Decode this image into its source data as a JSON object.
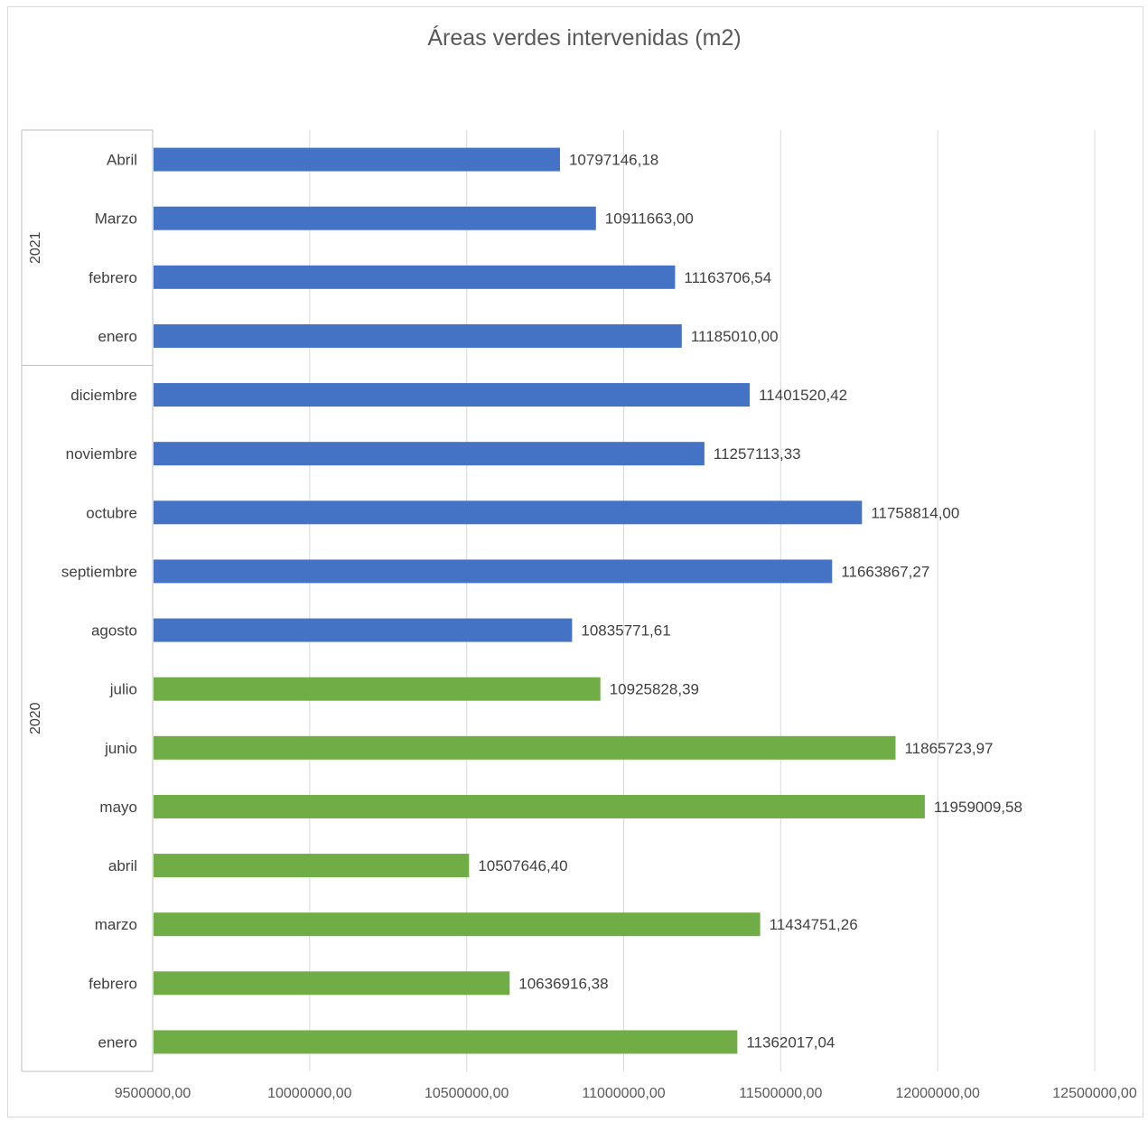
{
  "chart_data": {
    "type": "bar",
    "orientation": "horizontal",
    "title": "Áreas verdes intervenidas (m2)",
    "xlabel": "",
    "ylabel": "",
    "xlim": [
      9500000,
      12500000
    ],
    "x_ticks": [
      "9500000,00",
      "10000000,00",
      "10500000,00",
      "11000000,00",
      "11500000,00",
      "12000000,00",
      "12500000,00"
    ],
    "x_tick_values": [
      9500000,
      10000000,
      10500000,
      11000000,
      11500000,
      12000000,
      12500000
    ],
    "grid": true,
    "legend": "none",
    "colors": {
      "blue": "#4472c4",
      "green": "#70ad47"
    },
    "groups": [
      {
        "year": "2021",
        "count": 4
      },
      {
        "year": "2020",
        "count": 12
      }
    ],
    "categories": [
      {
        "year": "2021",
        "month": "Abril",
        "value": 10797146.18,
        "label": "10797146,18",
        "color": "#4472c4"
      },
      {
        "year": "2021",
        "month": "Marzo",
        "value": 10911663.0,
        "label": "10911663,00",
        "color": "#4472c4"
      },
      {
        "year": "2021",
        "month": "febrero",
        "value": 11163706.54,
        "label": "11163706,54",
        "color": "#4472c4"
      },
      {
        "year": "2021",
        "month": "enero",
        "value": 11185010.0,
        "label": "11185010,00",
        "color": "#4472c4"
      },
      {
        "year": "2020",
        "month": "diciembre",
        "value": 11401520.42,
        "label": "11401520,42",
        "color": "#4472c4"
      },
      {
        "year": "2020",
        "month": "noviembre",
        "value": 11257113.33,
        "label": "11257113,33",
        "color": "#4472c4"
      },
      {
        "year": "2020",
        "month": "octubre",
        "value": 11758814.0,
        "label": "11758814,00",
        "color": "#4472c4"
      },
      {
        "year": "2020",
        "month": "septiembre",
        "value": 11663867.27,
        "label": "11663867,27",
        "color": "#4472c4"
      },
      {
        "year": "2020",
        "month": "agosto",
        "value": 10835771.61,
        "label": "10835771,61",
        "color": "#4472c4"
      },
      {
        "year": "2020",
        "month": "julio",
        "value": 10925828.39,
        "label": "10925828,39",
        "color": "#70ad47"
      },
      {
        "year": "2020",
        "month": "junio",
        "value": 11865723.97,
        "label": "11865723,97",
        "color": "#70ad47"
      },
      {
        "year": "2020",
        "month": "mayo",
        "value": 11959009.58,
        "label": "11959009,58",
        "color": "#70ad47"
      },
      {
        "year": "2020",
        "month": "abril",
        "value": 10507646.4,
        "label": "10507646,40",
        "color": "#70ad47"
      },
      {
        "year": "2020",
        "month": "marzo",
        "value": 11434751.26,
        "label": "11434751,26",
        "color": "#70ad47"
      },
      {
        "year": "2020",
        "month": "febrero",
        "value": 10636916.38,
        "label": "10636916,38",
        "color": "#70ad47"
      },
      {
        "year": "2020",
        "month": "enero",
        "value": 11362017.04,
        "label": "11362017,04",
        "color": "#70ad47"
      }
    ]
  }
}
